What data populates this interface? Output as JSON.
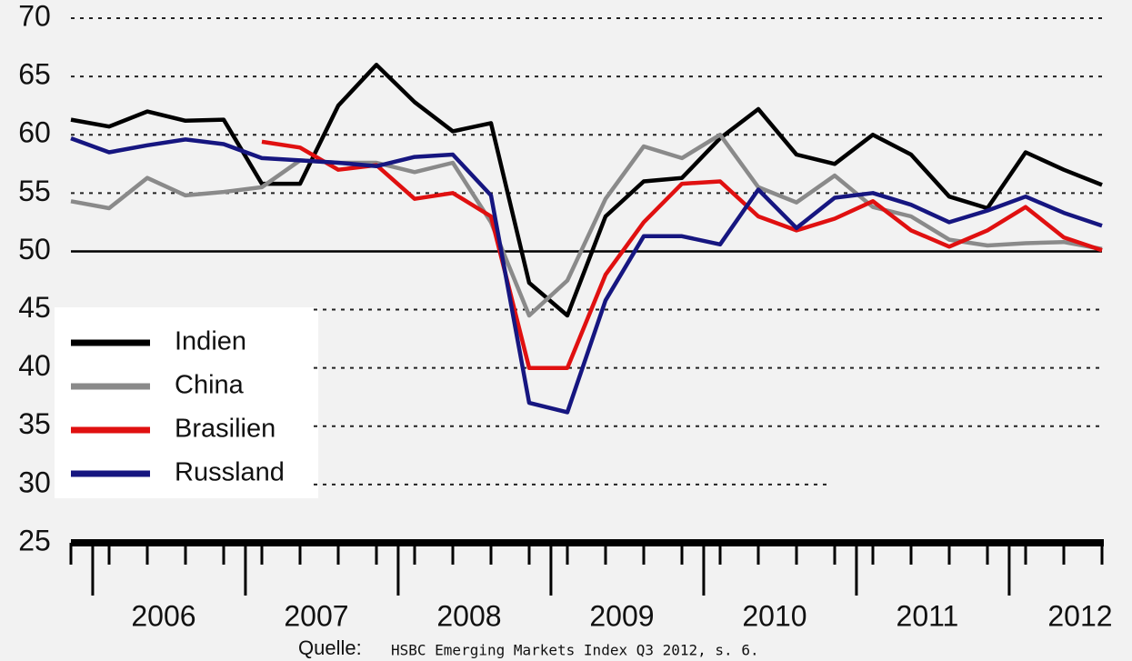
{
  "chart_data": {
    "type": "line",
    "categories": [
      null,
      null,
      null,
      null,
      null,
      null,
      null,
      null,
      null,
      null,
      null,
      null,
      null,
      null,
      null,
      null,
      null,
      null,
      null,
      null,
      null,
      null,
      null,
      null,
      null,
      null,
      null,
      null
    ],
    "year_labels": [
      "2006",
      "2007",
      "2008",
      "2009",
      "2010",
      "2011",
      "2012"
    ],
    "ylim": [
      25,
      70
    ],
    "yticks": [
      25,
      30,
      35,
      40,
      45,
      50,
      55,
      60,
      65,
      70
    ],
    "reference_line": 50,
    "grid": true,
    "series": [
      {
        "name": "Indien",
        "color": "#000000",
        "values": [
          61.3,
          60.7,
          62,
          61.2,
          61.3,
          55.8,
          55.8,
          62.5,
          66,
          62.8,
          60.3,
          61,
          47.3,
          44.5,
          53,
          56,
          56.3,
          59.7,
          62.2,
          58.3,
          57.5,
          60,
          58.3,
          54.7,
          53.7,
          58.5,
          57,
          55.7
        ]
      },
      {
        "name": "China",
        "color": "#8a8a8a",
        "values": [
          54.3,
          53.7,
          56.3,
          54.8,
          55.1,
          55.5,
          57.8,
          57.6,
          57.6,
          56.8,
          57.6,
          52.5,
          44.5,
          47.5,
          54.5,
          59,
          58,
          60,
          55.5,
          54.2,
          56.5,
          53.8,
          53,
          51,
          50.5,
          50.7,
          50.8,
          50.2
        ]
      },
      {
        "name": "Brasilien",
        "color": "#e01010",
        "values": [
          null,
          null,
          null,
          null,
          null,
          59.4,
          58.9,
          57,
          57.4,
          54.5,
          55,
          53,
          40,
          40,
          48,
          52.5,
          55.8,
          56,
          53,
          51.8,
          52.8,
          54.3,
          51.8,
          50.4,
          51.8,
          53.8,
          51.2,
          50.1
        ]
      },
      {
        "name": "Russland",
        "color": "#161680",
        "values": [
          59.7,
          58.5,
          59.1,
          59.6,
          59.2,
          58,
          57.8,
          57.6,
          57.3,
          58.1,
          58.3,
          54.8,
          37,
          36.2,
          45.8,
          51.3,
          51.3,
          50.6,
          55.3,
          52,
          54.6,
          55,
          54,
          52.5,
          53.5,
          54.7,
          53.3,
          52.2
        ]
      }
    ],
    "source_label": "Quelle:",
    "source": "HSBC Emerging Markets Index Q3 2012, s. 6."
  }
}
